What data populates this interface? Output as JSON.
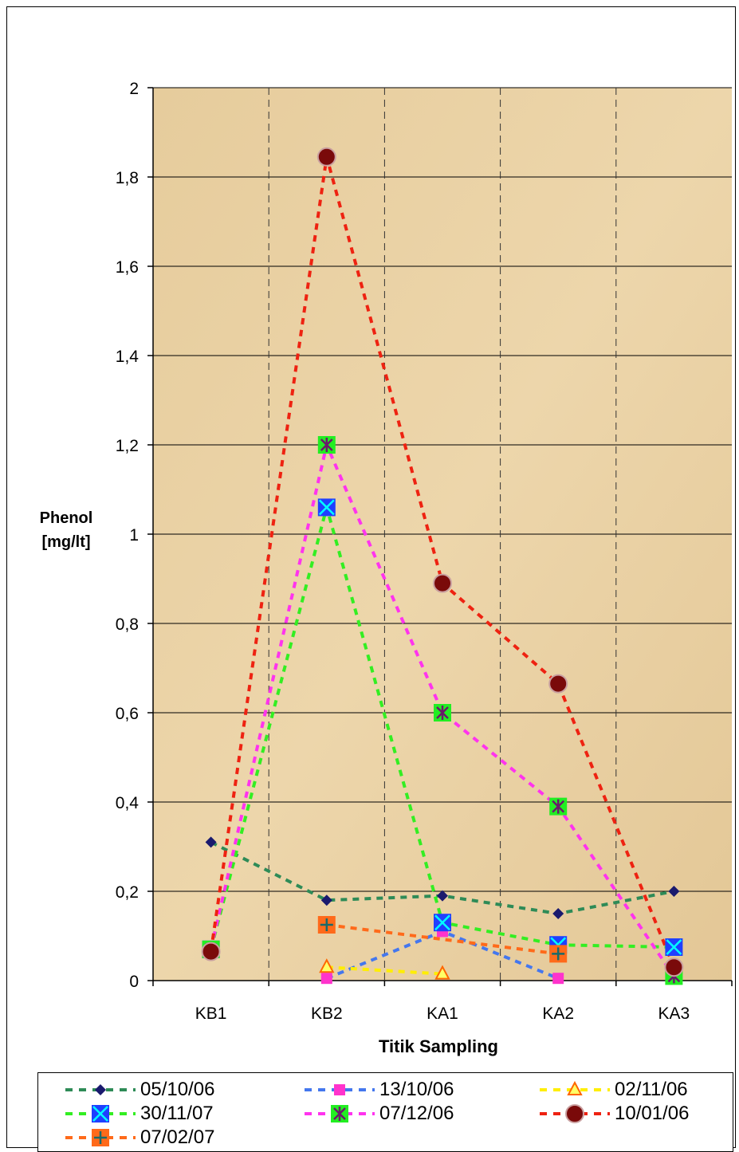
{
  "chart_data": {
    "type": "line",
    "title": "",
    "xlabel": "Titik Sampling",
    "ylabel_line1": "Phenol",
    "ylabel_line2": "[mg/lt]",
    "categories": [
      "KB1",
      "KB2",
      "KA1",
      "KA2",
      "KA3"
    ],
    "ylim": [
      0,
      2
    ],
    "yticks": [
      0,
      0.2,
      0.4,
      0.6,
      0.8,
      1,
      1.2,
      1.4,
      1.6,
      1.8,
      2
    ],
    "ytick_labels": [
      "0",
      "0,2",
      "0,4",
      "0,6",
      "0,8",
      "1",
      "1,2",
      "1,4",
      "1,6",
      "1,8",
      "2"
    ],
    "grid": true,
    "legend_position": "bottom",
    "series": [
      {
        "name": "05/10/06",
        "values": [
          0.31,
          0.18,
          0.19,
          0.15,
          0.2
        ],
        "line_color": "#2e8b57",
        "marker": "diamond",
        "marker_color": "#1a1a6e"
      },
      {
        "name": "13/10/06",
        "values": [
          null,
          0.005,
          0.11,
          0.005,
          null
        ],
        "line_color": "#4477ee",
        "marker": "square",
        "marker_color": "#ff33cc"
      },
      {
        "name": "02/11/06",
        "values": [
          null,
          0.03,
          0.015,
          null,
          null
        ],
        "line_color": "#ffee00",
        "marker": "triangle",
        "marker_color": "#ffff66"
      },
      {
        "name": "30/11/07",
        "values": [
          0.07,
          1.06,
          0.13,
          0.08,
          0.075
        ],
        "line_color": "#33ee22",
        "marker": "xsquare",
        "marker_color": "#1f3fff"
      },
      {
        "name": "07/12/06",
        "values": [
          0.07,
          1.2,
          0.6,
          0.39,
          0.01
        ],
        "line_color": "#ff33ee",
        "marker": "starsquare",
        "marker_color": "#22ee22"
      },
      {
        "name": "10/01/06",
        "values": [
          0.065,
          1.845,
          0.89,
          0.665,
          0.03
        ],
        "line_color": "#ee2211",
        "marker": "circle",
        "marker_color": "#7a0a0a"
      },
      {
        "name": "07/02/07",
        "values": [
          null,
          0.125,
          null,
          0.06,
          null
        ],
        "line_color": "#ff6a1a",
        "marker": "plussquare",
        "marker_color": "#ff6a1a"
      }
    ]
  }
}
